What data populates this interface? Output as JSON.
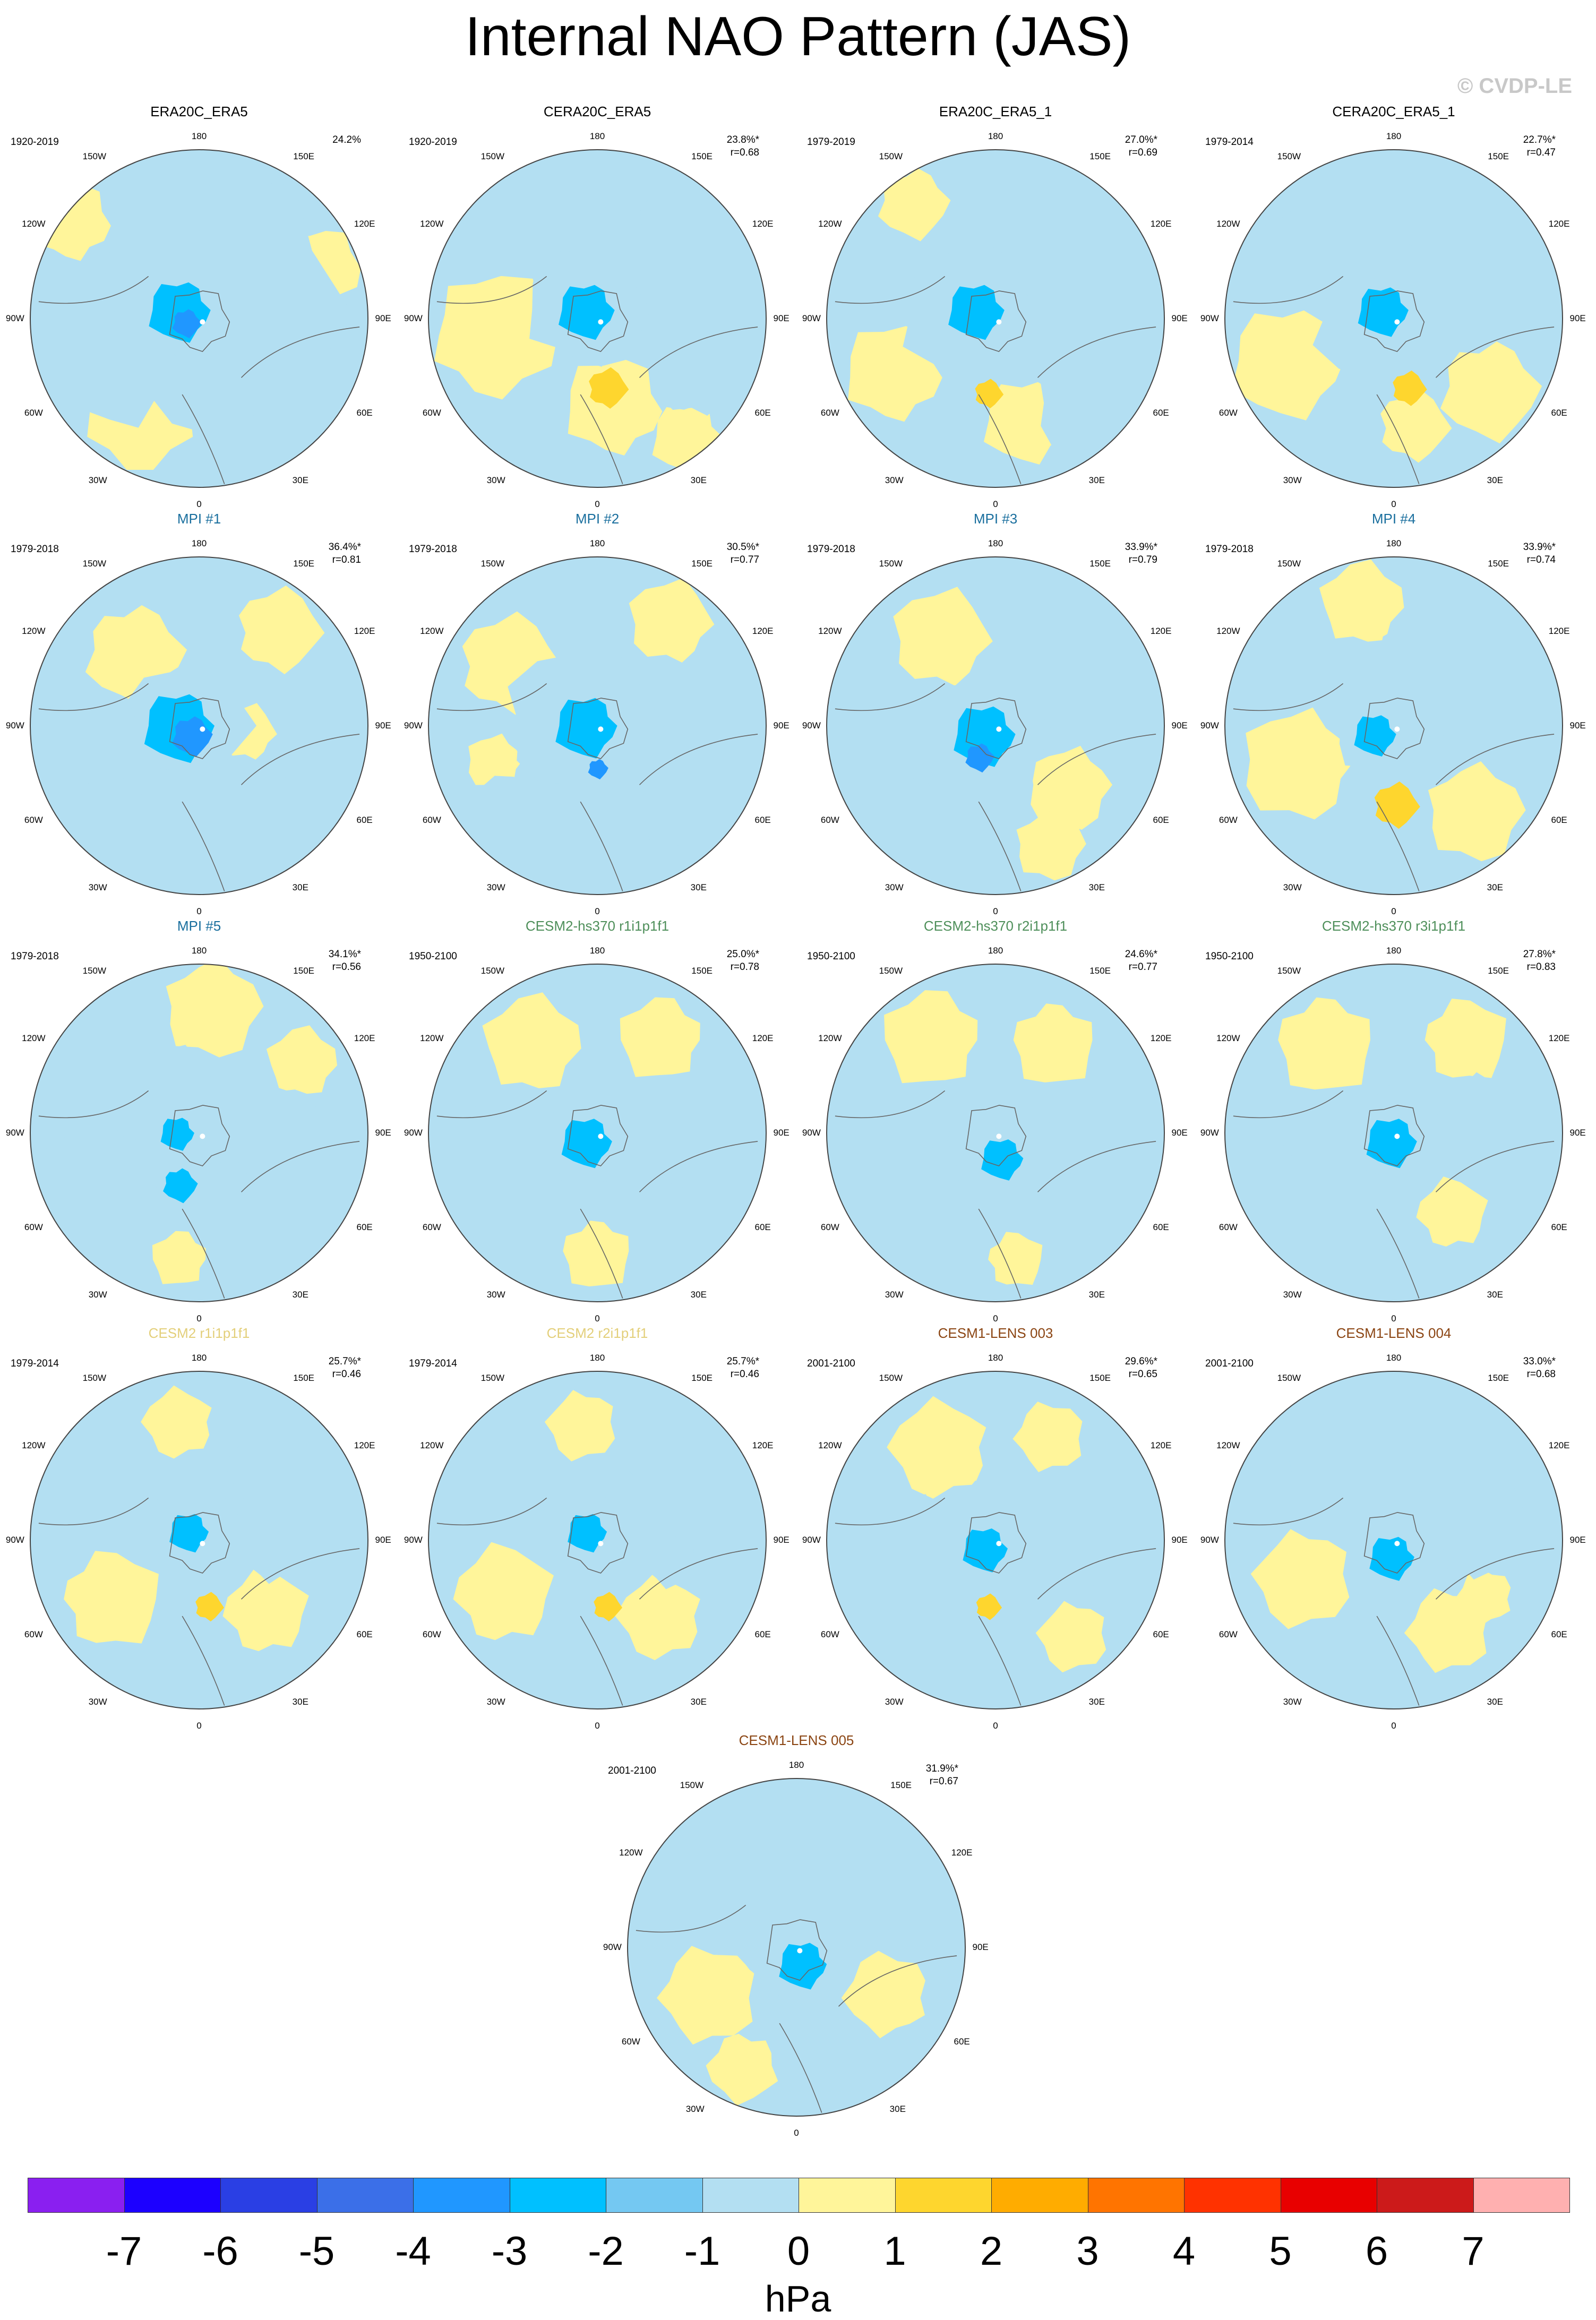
{
  "title": "Internal NAO Pattern (JAS)",
  "watermark": "© CVDP-LE",
  "map_labels": {
    "north": "180",
    "south": "0",
    "west90": "90W",
    "east90": "90E",
    "w150": "150W",
    "e150": "150E",
    "w120": "120W",
    "e120": "120E",
    "w60": "60W",
    "e60": "60E",
    "w30": "30W",
    "e30": "30E"
  },
  "panels": [
    {
      "name": "ERA20C_ERA5",
      "name_color": "#000000",
      "period": "1920-2019",
      "pct": "24.2%",
      "r": "",
      "pattern": {
        "blue": [
          [
            0.0,
            -0.08,
            0.95
          ],
          [
            -0.45,
            0.25,
            0.45
          ],
          [
            0.55,
            0.35,
            0.35
          ]
        ],
        "yellow": [
          [
            -0.35,
            0.55,
            0.38
          ],
          [
            0.7,
            -0.3,
            0.28
          ],
          [
            -0.75,
            -0.55,
            0.28
          ]
        ],
        "low": [
          [
            -0.1,
            -0.05,
            0.22,
            3
          ],
          [
            -0.08,
            0.02,
            0.1,
            4
          ]
        ],
        "high": [],
        "dot": [
          0.02,
          0.02
        ]
      }
    },
    {
      "name": "CERA20C_ERA5",
      "name_color": "#000000",
      "period": "1920-2019",
      "pct": "23.8%*",
      "r": "r=0.68",
      "pattern": {
        "blue": [
          [
            -0.05,
            -0.05,
            0.45
          ],
          [
            0.45,
            -0.55,
            0.3
          ],
          [
            0.6,
            0.35,
            0.3
          ]
        ],
        "yellow": [
          [
            -0.65,
            0.1,
            0.45
          ],
          [
            0.1,
            0.55,
            0.35
          ],
          [
            0.55,
            0.7,
            0.25
          ]
        ],
        "low": [
          [
            -0.05,
            -0.05,
            0.2,
            3
          ]
        ],
        "high": [
          [
            0.05,
            0.42,
            0.14,
            2
          ]
        ],
        "dot": [
          0.02,
          0.02
        ]
      }
    },
    {
      "name": "ERA20C_ERA5_1",
      "name_color": "#000000",
      "period": "1979-2019",
      "pct": "27.0%*",
      "r": "r=0.69",
      "pattern": {
        "blue": [
          [
            -0.1,
            -0.05,
            0.5
          ],
          [
            0.5,
            -0.5,
            0.35
          ],
          [
            0.55,
            0.5,
            0.35
          ]
        ],
        "yellow": [
          [
            -0.6,
            0.35,
            0.35
          ],
          [
            0.2,
            0.6,
            0.3
          ],
          [
            -0.5,
            -0.7,
            0.25
          ]
        ],
        "low": [
          [
            -0.1,
            -0.05,
            0.2,
            3
          ]
        ],
        "high": [
          [
            -0.05,
            0.45,
            0.1,
            2
          ]
        ],
        "dot": [
          0.02,
          0.02
        ]
      }
    },
    {
      "name": "CERA20C_ERA5_1",
      "name_color": "#000000",
      "period": "1979-2014",
      "pct": "22.7%*",
      "r": "r=0.47",
      "pattern": {
        "blue": [
          [
            -0.05,
            -0.05,
            0.55
          ],
          [
            0.4,
            -0.55,
            0.35
          ],
          [
            -0.55,
            -0.45,
            0.3
          ]
        ],
        "yellow": [
          [
            -0.6,
            0.25,
            0.4
          ],
          [
            0.55,
            0.4,
            0.35
          ],
          [
            0.1,
            0.65,
            0.25
          ]
        ],
        "low": [
          [
            -0.05,
            -0.05,
            0.18,
            3
          ]
        ],
        "high": [
          [
            0.08,
            0.42,
            0.12,
            2
          ]
        ],
        "dot": [
          0.02,
          0.02
        ]
      }
    },
    {
      "name": "MPI #1",
      "name_color": "#1a6f9e",
      "period": "1979-2018",
      "pct": "36.4%*",
      "r": "r=0.81",
      "pattern": {
        "blue": [
          [
            -0.1,
            0.0,
            0.45
          ],
          [
            0.4,
            0.55,
            0.4
          ],
          [
            -0.55,
            0.55,
            0.3
          ]
        ],
        "yellow": [
          [
            -0.4,
            -0.45,
            0.35
          ],
          [
            0.45,
            -0.55,
            0.3
          ],
          [
            0.3,
            0.05,
            0.2
          ]
        ],
        "low": [
          [
            -0.1,
            0.0,
            0.25,
            3
          ],
          [
            -0.05,
            0.05,
            0.14,
            4
          ]
        ],
        "high": [],
        "dot": [
          0.02,
          0.02
        ]
      }
    },
    {
      "name": "MPI #2",
      "name_color": "#1a6f9e",
      "period": "1979-2018",
      "pct": "30.5%*",
      "r": "r=0.77",
      "pattern": {
        "blue": [
          [
            -0.05,
            0.0,
            0.55
          ],
          [
            0.5,
            0.45,
            0.35
          ],
          [
            -0.55,
            0.55,
            0.3
          ]
        ],
        "yellow": [
          [
            -0.55,
            -0.35,
            0.35
          ],
          [
            0.45,
            -0.6,
            0.3
          ],
          [
            -0.6,
            0.2,
            0.2
          ]
        ],
        "low": [
          [
            -0.05,
            0.0,
            0.22,
            3
          ],
          [
            0.0,
            0.25,
            0.07,
            4
          ]
        ],
        "high": [],
        "dot": [
          0.02,
          0.02
        ]
      }
    },
    {
      "name": "MPI #3",
      "name_color": "#1a6f9e",
      "period": "1979-2018",
      "pct": "33.9%*",
      "r": "r=0.79",
      "pattern": {
        "blue": [
          [
            -0.05,
            0.05,
            0.5
          ],
          [
            0.55,
            -0.4,
            0.3
          ],
          [
            -0.55,
            0.5,
            0.3
          ]
        ],
        "yellow": [
          [
            -0.3,
            -0.5,
            0.35
          ],
          [
            0.45,
            0.35,
            0.3
          ],
          [
            0.3,
            0.7,
            0.25
          ]
        ],
        "low": [
          [
            -0.05,
            0.05,
            0.22,
            3
          ],
          [
            -0.1,
            0.18,
            0.1,
            4
          ]
        ],
        "high": [],
        "dot": [
          0.02,
          0.02
        ]
      }
    },
    {
      "name": "MPI #4",
      "name_color": "#1a6f9e",
      "period": "1979-2018",
      "pct": "33.9%*",
      "r": "r=0.74",
      "pattern": {
        "blue": [
          [
            -0.1,
            0.0,
            0.35
          ],
          [
            0.35,
            -0.15,
            0.3
          ],
          [
            0.1,
            -0.45,
            0.25
          ]
        ],
        "yellow": [
          [
            -0.55,
            0.2,
            0.4
          ],
          [
            0.45,
            0.5,
            0.35
          ],
          [
            -0.2,
            -0.7,
            0.3
          ]
        ],
        "low": [
          [
            -0.1,
            0.05,
            0.15,
            3
          ]
        ],
        "high": [
          [
            0.0,
            0.48,
            0.16,
            2
          ]
        ],
        "dot": [
          0.02,
          0.02
        ]
      }
    },
    {
      "name": "MPI #5",
      "name_color": "#1a6f9e",
      "period": "1979-2018",
      "pct": "34.1%*",
      "r": "r=0.56",
      "pattern": {
        "blue": [
          [
            -0.2,
            0.0,
            0.55
          ],
          [
            -0.6,
            0.2,
            0.4
          ],
          [
            0.5,
            0.1,
            0.4
          ]
        ],
        "yellow": [
          [
            0.05,
            -0.75,
            0.35
          ],
          [
            0.6,
            -0.4,
            0.25
          ],
          [
            -0.1,
            0.75,
            0.2
          ]
        ],
        "low": [
          [
            -0.12,
            0.0,
            0.12,
            3
          ],
          [
            -0.12,
            0.3,
            0.12,
            3
          ]
        ],
        "high": [],
        "dot": [
          0.02,
          0.02
        ]
      }
    },
    {
      "name": "CESM2-hs370 r1i1p1f1",
      "name_color": "#4e8f5a",
      "period": "1950-2100",
      "pct": "25.0%*",
      "r": "r=0.78",
      "pattern": {
        "blue": [
          [
            0.0,
            0.05,
            0.35
          ],
          [
            0.55,
            0.1,
            0.3
          ],
          [
            -0.55,
            -0.05,
            0.25
          ]
        ],
        "yellow": [
          [
            -0.4,
            -0.5,
            0.35
          ],
          [
            0.4,
            -0.55,
            0.3
          ],
          [
            0.0,
            0.7,
            0.25
          ]
        ],
        "low": [
          [
            -0.05,
            0.05,
            0.18,
            3
          ]
        ],
        "high": [],
        "dot": [
          0.02,
          0.02
        ]
      }
    },
    {
      "name": "CESM2-hs370 r2i1p1f1",
      "name_color": "#4e8f5a",
      "period": "1950-2100",
      "pct": "24.6%*",
      "r": "r=0.77",
      "pattern": {
        "blue": [
          [
            0.0,
            0.05,
            0.35
          ],
          [
            0.55,
            0.05,
            0.3
          ],
          [
            -0.55,
            -0.05,
            0.25
          ]
        ],
        "yellow": [
          [
            -0.35,
            -0.55,
            0.35
          ],
          [
            0.35,
            -0.55,
            0.3
          ],
          [
            0.1,
            0.75,
            0.2
          ]
        ],
        "low": [
          [
            0.05,
            0.15,
            0.15,
            3
          ]
        ],
        "high": [],
        "dot": [
          0.02,
          0.02
        ]
      }
    },
    {
      "name": "CESM2-hs370 r3i1p1f1",
      "name_color": "#4e8f5a",
      "period": "1950-2100",
      "pct": "27.8%*",
      "r": "r=0.83",
      "pattern": {
        "blue": [
          [
            0.0,
            0.0,
            0.35
          ],
          [
            0.55,
            -0.1,
            0.3
          ],
          [
            -0.55,
            -0.05,
            0.25
          ]
        ],
        "yellow": [
          [
            -0.4,
            -0.55,
            0.35
          ],
          [
            0.4,
            -0.55,
            0.3
          ],
          [
            0.35,
            0.5,
            0.25
          ]
        ],
        "low": [
          [
            0.0,
            0.05,
            0.18,
            3
          ]
        ],
        "high": [],
        "dot": [
          0.02,
          0.02
        ]
      }
    },
    {
      "name": "CESM2 r1i1p1f1",
      "name_color": "#e3cf7a",
      "period": "1979-2014",
      "pct": "25.7%*",
      "r": "r=0.46",
      "pattern": {
        "blue": [
          [
            -0.05,
            -0.05,
            0.35
          ],
          [
            0.35,
            -0.45,
            0.25
          ],
          [
            0.45,
            0.1,
            0.2
          ]
        ],
        "yellow": [
          [
            -0.55,
            0.35,
            0.35
          ],
          [
            0.4,
            0.45,
            0.3
          ],
          [
            -0.1,
            -0.7,
            0.25
          ]
        ],
        "low": [
          [
            -0.05,
            -0.05,
            0.14,
            3
          ]
        ],
        "high": [
          [
            0.05,
            0.4,
            0.1,
            2
          ]
        ],
        "dot": [
          0.02,
          0.02
        ]
      }
    },
    {
      "name": "CESM2 r2i1p1f1",
      "name_color": "#e3cf7a",
      "period": "1979-2014",
      "pct": "25.7%*",
      "r": "r=0.46",
      "pattern": {
        "blue": [
          [
            -0.05,
            -0.05,
            0.35
          ],
          [
            0.35,
            -0.45,
            0.25
          ],
          [
            0.45,
            0.1,
            0.2
          ]
        ],
        "yellow": [
          [
            -0.55,
            0.35,
            0.35
          ],
          [
            0.4,
            0.45,
            0.3
          ],
          [
            -0.1,
            -0.7,
            0.25
          ]
        ],
        "low": [
          [
            -0.05,
            -0.05,
            0.14,
            3
          ]
        ],
        "high": [
          [
            0.05,
            0.4,
            0.1,
            2
          ]
        ],
        "dot": [
          0.02,
          0.02
        ]
      }
    },
    {
      "name": "CESM1-LENS 003",
      "name_color": "#8b4513",
      "period": "2001-2100",
      "pct": "29.6%*",
      "r": "r=0.65",
      "pattern": {
        "blue": [
          [
            -0.05,
            -0.05,
            0.4
          ],
          [
            0.55,
            0.05,
            0.35
          ],
          [
            -0.55,
            -0.1,
            0.25
          ]
        ],
        "yellow": [
          [
            -0.3,
            -0.55,
            0.35
          ],
          [
            0.45,
            0.55,
            0.25
          ],
          [
            0.3,
            -0.6,
            0.25
          ]
        ],
        "low": [
          [
            -0.05,
            0.05,
            0.16,
            3
          ]
        ],
        "high": [
          [
            -0.05,
            0.4,
            0.09,
            2
          ]
        ],
        "dot": [
          0.02,
          0.02
        ]
      }
    },
    {
      "name": "CESM1-LENS 004",
      "name_color": "#8b4513",
      "period": "2001-2100",
      "pct": "33.0%*",
      "r": "r=0.68",
      "pattern": {
        "blue": [
          [
            0.0,
            0.0,
            0.4
          ],
          [
            0.55,
            -0.1,
            0.35
          ],
          [
            -0.4,
            -0.5,
            0.3
          ]
        ],
        "yellow": [
          [
            -0.55,
            0.2,
            0.35
          ],
          [
            0.3,
            0.55,
            0.3
          ],
          [
            0.55,
            0.35,
            0.2
          ]
        ],
        "low": [
          [
            0.0,
            0.1,
            0.16,
            3
          ]
        ],
        "high": [],
        "dot": [
          0.02,
          0.02
        ]
      }
    },
    {
      "name": "CESM1-LENS 005",
      "name_color": "#8b4513",
      "period": "2001-2100",
      "pct": "31.9%*",
      "r": "r=0.67",
      "pattern": {
        "blue": [
          [
            0.0,
            0.0,
            0.4
          ],
          [
            0.4,
            -0.3,
            0.3
          ],
          [
            -0.1,
            -0.6,
            0.2
          ]
        ],
        "yellow": [
          [
            -0.55,
            0.3,
            0.35
          ],
          [
            0.55,
            0.3,
            0.3
          ],
          [
            -0.3,
            0.7,
            0.25
          ]
        ],
        "low": [
          [
            0.05,
            0.1,
            0.17,
            3
          ]
        ],
        "high": [],
        "dot": [
          0.02,
          0.02
        ]
      }
    }
  ],
  "colorbar": {
    "unit": "hPa",
    "ticks": [
      "-7",
      "-6",
      "-5",
      "-4",
      "-3",
      "-2",
      "-1",
      "0",
      "1",
      "2",
      "3",
      "4",
      "5",
      "6",
      "7"
    ],
    "colors": [
      "#8a1ff0",
      "#1c00ff",
      "#2a3fe4",
      "#3b6fe8",
      "#2097ff",
      "#00c0ff",
      "#74c8f2",
      "#b3dff2",
      "#fff59a",
      "#fed62e",
      "#ffac00",
      "#ff7400",
      "#ff3200",
      "#e80000",
      "#cc1a1a",
      "#ffb0b0"
    ]
  }
}
